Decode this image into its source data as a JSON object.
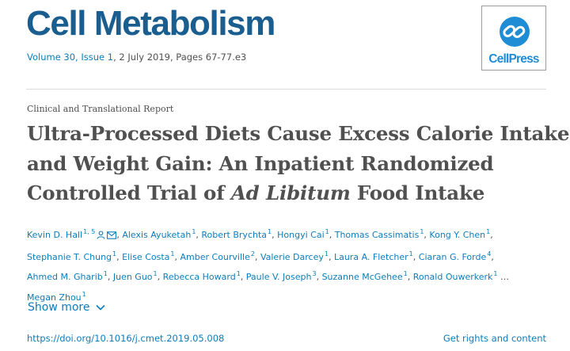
{
  "journal": {
    "title": "Cell Metabolism",
    "volume_issue": "Volume 30, Issue 1",
    "date_pages": ", 2 July 2019, Pages 67-77.e3"
  },
  "logo": {
    "wordmark": "CellPress",
    "icon": "cellpress-chain-icon",
    "color": "#1f8dd6"
  },
  "article": {
    "type": "Clinical and Translational Report",
    "title_line1": "Ultra-Processed Diets Cause Excess Calorie Intake",
    "title_line2": "and Weight Gain: An Inpatient Randomized",
    "title_line3_pre": "Controlled Trial of ",
    "title_line3_em": "Ad Libitum",
    "title_line3_post": " Food Intake"
  },
  "authors": {
    "lines": [
      [
        {
          "name": "Kevin D. Hall",
          "sup": "1, 5",
          "icons": [
            "person-icon",
            "email-icon"
          ]
        },
        {
          "name": "Alexis Ayuketah",
          "sup": "1"
        },
        {
          "name": "Robert Brychta",
          "sup": "1"
        },
        {
          "name": "Hongyi Cai",
          "sup": "1"
        },
        {
          "name": "Thomas Cassimatis",
          "sup": "1"
        },
        {
          "name": "Kong Y. Chen",
          "sup": "1"
        }
      ],
      [
        {
          "name": "Stephanie T. Chung",
          "sup": "1"
        },
        {
          "name": "Elise Costa",
          "sup": "1"
        },
        {
          "name": "Amber Courville",
          "sup": "2"
        },
        {
          "name": "Valerie Darcey",
          "sup": "1"
        },
        {
          "name": "Laura A. Fletcher",
          "sup": "1"
        },
        {
          "name": "Ciaran G. Forde",
          "sup": "4"
        }
      ],
      [
        {
          "name": "Ahmed M. Gharib",
          "sup": "1"
        },
        {
          "name": "Juen Guo",
          "sup": "1"
        },
        {
          "name": "Rebecca Howard",
          "sup": "1"
        },
        {
          "name": "Paule V. Joseph",
          "sup": "3"
        },
        {
          "name": "Suzanne McGehee",
          "sup": "1"
        },
        {
          "name": "Ronald Ouwerkerk",
          "sup": "1",
          "trailing": " …"
        }
      ],
      [
        {
          "name": "Megan Zhou",
          "sup": "1"
        }
      ]
    ],
    "show_more": "Show more"
  },
  "links": {
    "doi": "https://doi.org/10.1016/j.cmet.2019.05.008",
    "rights": "Get rights and content"
  },
  "colors": {
    "journal_blue": "#1a5d8f",
    "link_blue": "#0c7dbb",
    "text_gray": "#505050"
  }
}
